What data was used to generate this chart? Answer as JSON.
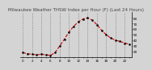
{
  "title": "Milwaukee Weather THSW Index per Hour (F) (Last 24 Hours)",
  "title_fontsize": 4.0,
  "background_color": "#d4d4d4",
  "plot_bg_color": "#d4d4d4",
  "line_color": "#cc0000",
  "marker_color": "#000000",
  "marker_size": 1.5,
  "line_width": 0.8,
  "line_style": "--",
  "hours": [
    0,
    1,
    2,
    3,
    4,
    5,
    6,
    7,
    8,
    9,
    10,
    11,
    12,
    13,
    14,
    15,
    16,
    17,
    18,
    19,
    20,
    21,
    22,
    23
  ],
  "values": [
    18,
    16,
    15,
    14,
    15,
    14,
    13,
    18,
    30,
    42,
    55,
    65,
    73,
    78,
    80,
    76,
    68,
    58,
    50,
    44,
    40,
    38,
    35,
    33
  ],
  "ylim": [
    10,
    90
  ],
  "ytick_values": [
    20,
    30,
    40,
    50,
    60,
    70,
    80
  ],
  "ytick_labels": [
    "20",
    "30",
    "40",
    "50",
    "60",
    "70",
    "80"
  ],
  "xlim": [
    -0.5,
    23.5
  ],
  "grid_color": "#888888",
  "grid_style": "--",
  "grid_linewidth": 0.4,
  "tick_fontsize": 3.0,
  "title_color": "#444444",
  "spine_color": "#000000"
}
